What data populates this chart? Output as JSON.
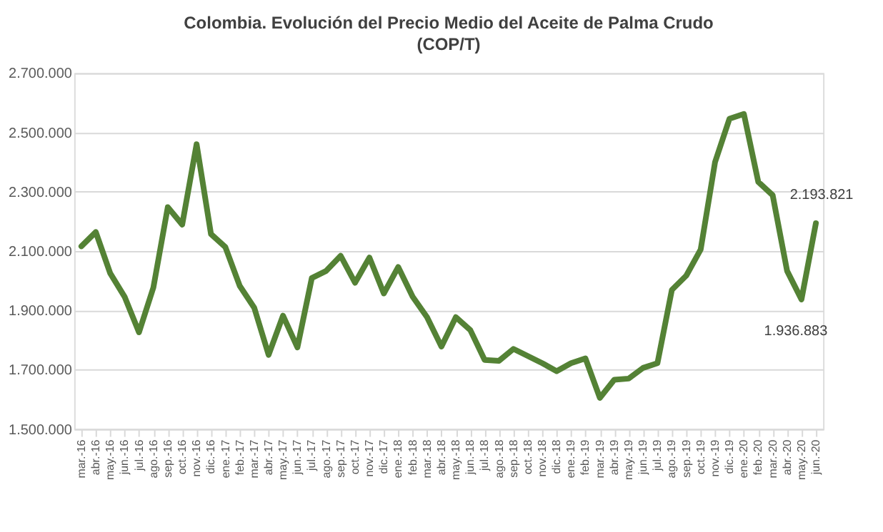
{
  "chart_data": {
    "type": "line",
    "title": "Colombia. Evolución del Precio Medio del Aceite de Palma Crudo",
    "subtitle": "(COP/T)",
    "categories": [
      "mar.-16",
      "abr.-16",
      "may.-16",
      "jun.-16",
      "jul.-16",
      "ago.-16",
      "sep.-16",
      "oct.-16",
      "nov.-16",
      "dic.-16",
      "ene.-17",
      "feb.-17",
      "mar.-17",
      "abr.-17",
      "may.-17",
      "jun.-17",
      "jul.-17",
      "ago.-17",
      "sep.-17",
      "oct.-17",
      "nov.-17",
      "dic.-17",
      "ene.-18",
      "feb.-18",
      "mar.-18",
      "abr.-18",
      "may.-18",
      "jun.-18",
      "jul.-18",
      "ago.-18",
      "sep.-18",
      "oct.-18",
      "nov.-18",
      "dic.-18",
      "ene.-19",
      "feb.-19",
      "mar.-19",
      "abr.-19",
      "may.-19",
      "jun.-19",
      "jul.-19",
      "ago.-19",
      "sep.-19",
      "oct.-19",
      "nov.-19",
      "dic.-19",
      "ene.-20",
      "feb.-20",
      "mar.-20",
      "abr.-20",
      "may.-20",
      "jun.-20"
    ],
    "series": [
      {
        "color": "#548235",
        "values": [
          2116000,
          2164000,
          2025000,
          1946000,
          1826000,
          1977000,
          2248000,
          2189000,
          2460000,
          2157000,
          2113000,
          1982000,
          1909000,
          1750000,
          1882000,
          1775000,
          2009000,
          2033000,
          2084000,
          1993000,
          2078000,
          1957000,
          2046000,
          1946000,
          1877000,
          1778000,
          1877000,
          1834000,
          1733000,
          1730000,
          1770000,
          1746000,
          1722000,
          1695000,
          1722000,
          1738000,
          1605000,
          1666000,
          1670000,
          1706000,
          1722000,
          1969000,
          2017000,
          2105000,
          2400000,
          2546000,
          2562000,
          2333000,
          2288000,
          2033000,
          1936883,
          2193821
        ],
        "value_labels": [
          null,
          null,
          null,
          null,
          null,
          null,
          null,
          null,
          null,
          null,
          null,
          null,
          null,
          null,
          null,
          null,
          null,
          null,
          null,
          null,
          null,
          null,
          null,
          null,
          null,
          null,
          null,
          null,
          null,
          null,
          null,
          null,
          null,
          null,
          null,
          null,
          null,
          null,
          null,
          null,
          null,
          null,
          null,
          null,
          null,
          null,
          null,
          null,
          null,
          null,
          "1.936.883",
          "2.193.821"
        ]
      }
    ],
    "ylim": [
      1500000,
      2700000
    ],
    "yticks": [
      {
        "value": 1500000,
        "label": "1.500.000"
      },
      {
        "value": 1700000,
        "label": "1.700.000"
      },
      {
        "value": 1900000,
        "label": "1.900.000"
      },
      {
        "value": 2100000,
        "label": "2.100.000"
      },
      {
        "value": 2300000,
        "label": "2.300.000"
      },
      {
        "value": 2500000,
        "label": "2.500.000"
      },
      {
        "value": 2700000,
        "label": "2.700.000"
      }
    ],
    "grid": "y",
    "marker": "none",
    "line_style": "solid"
  }
}
